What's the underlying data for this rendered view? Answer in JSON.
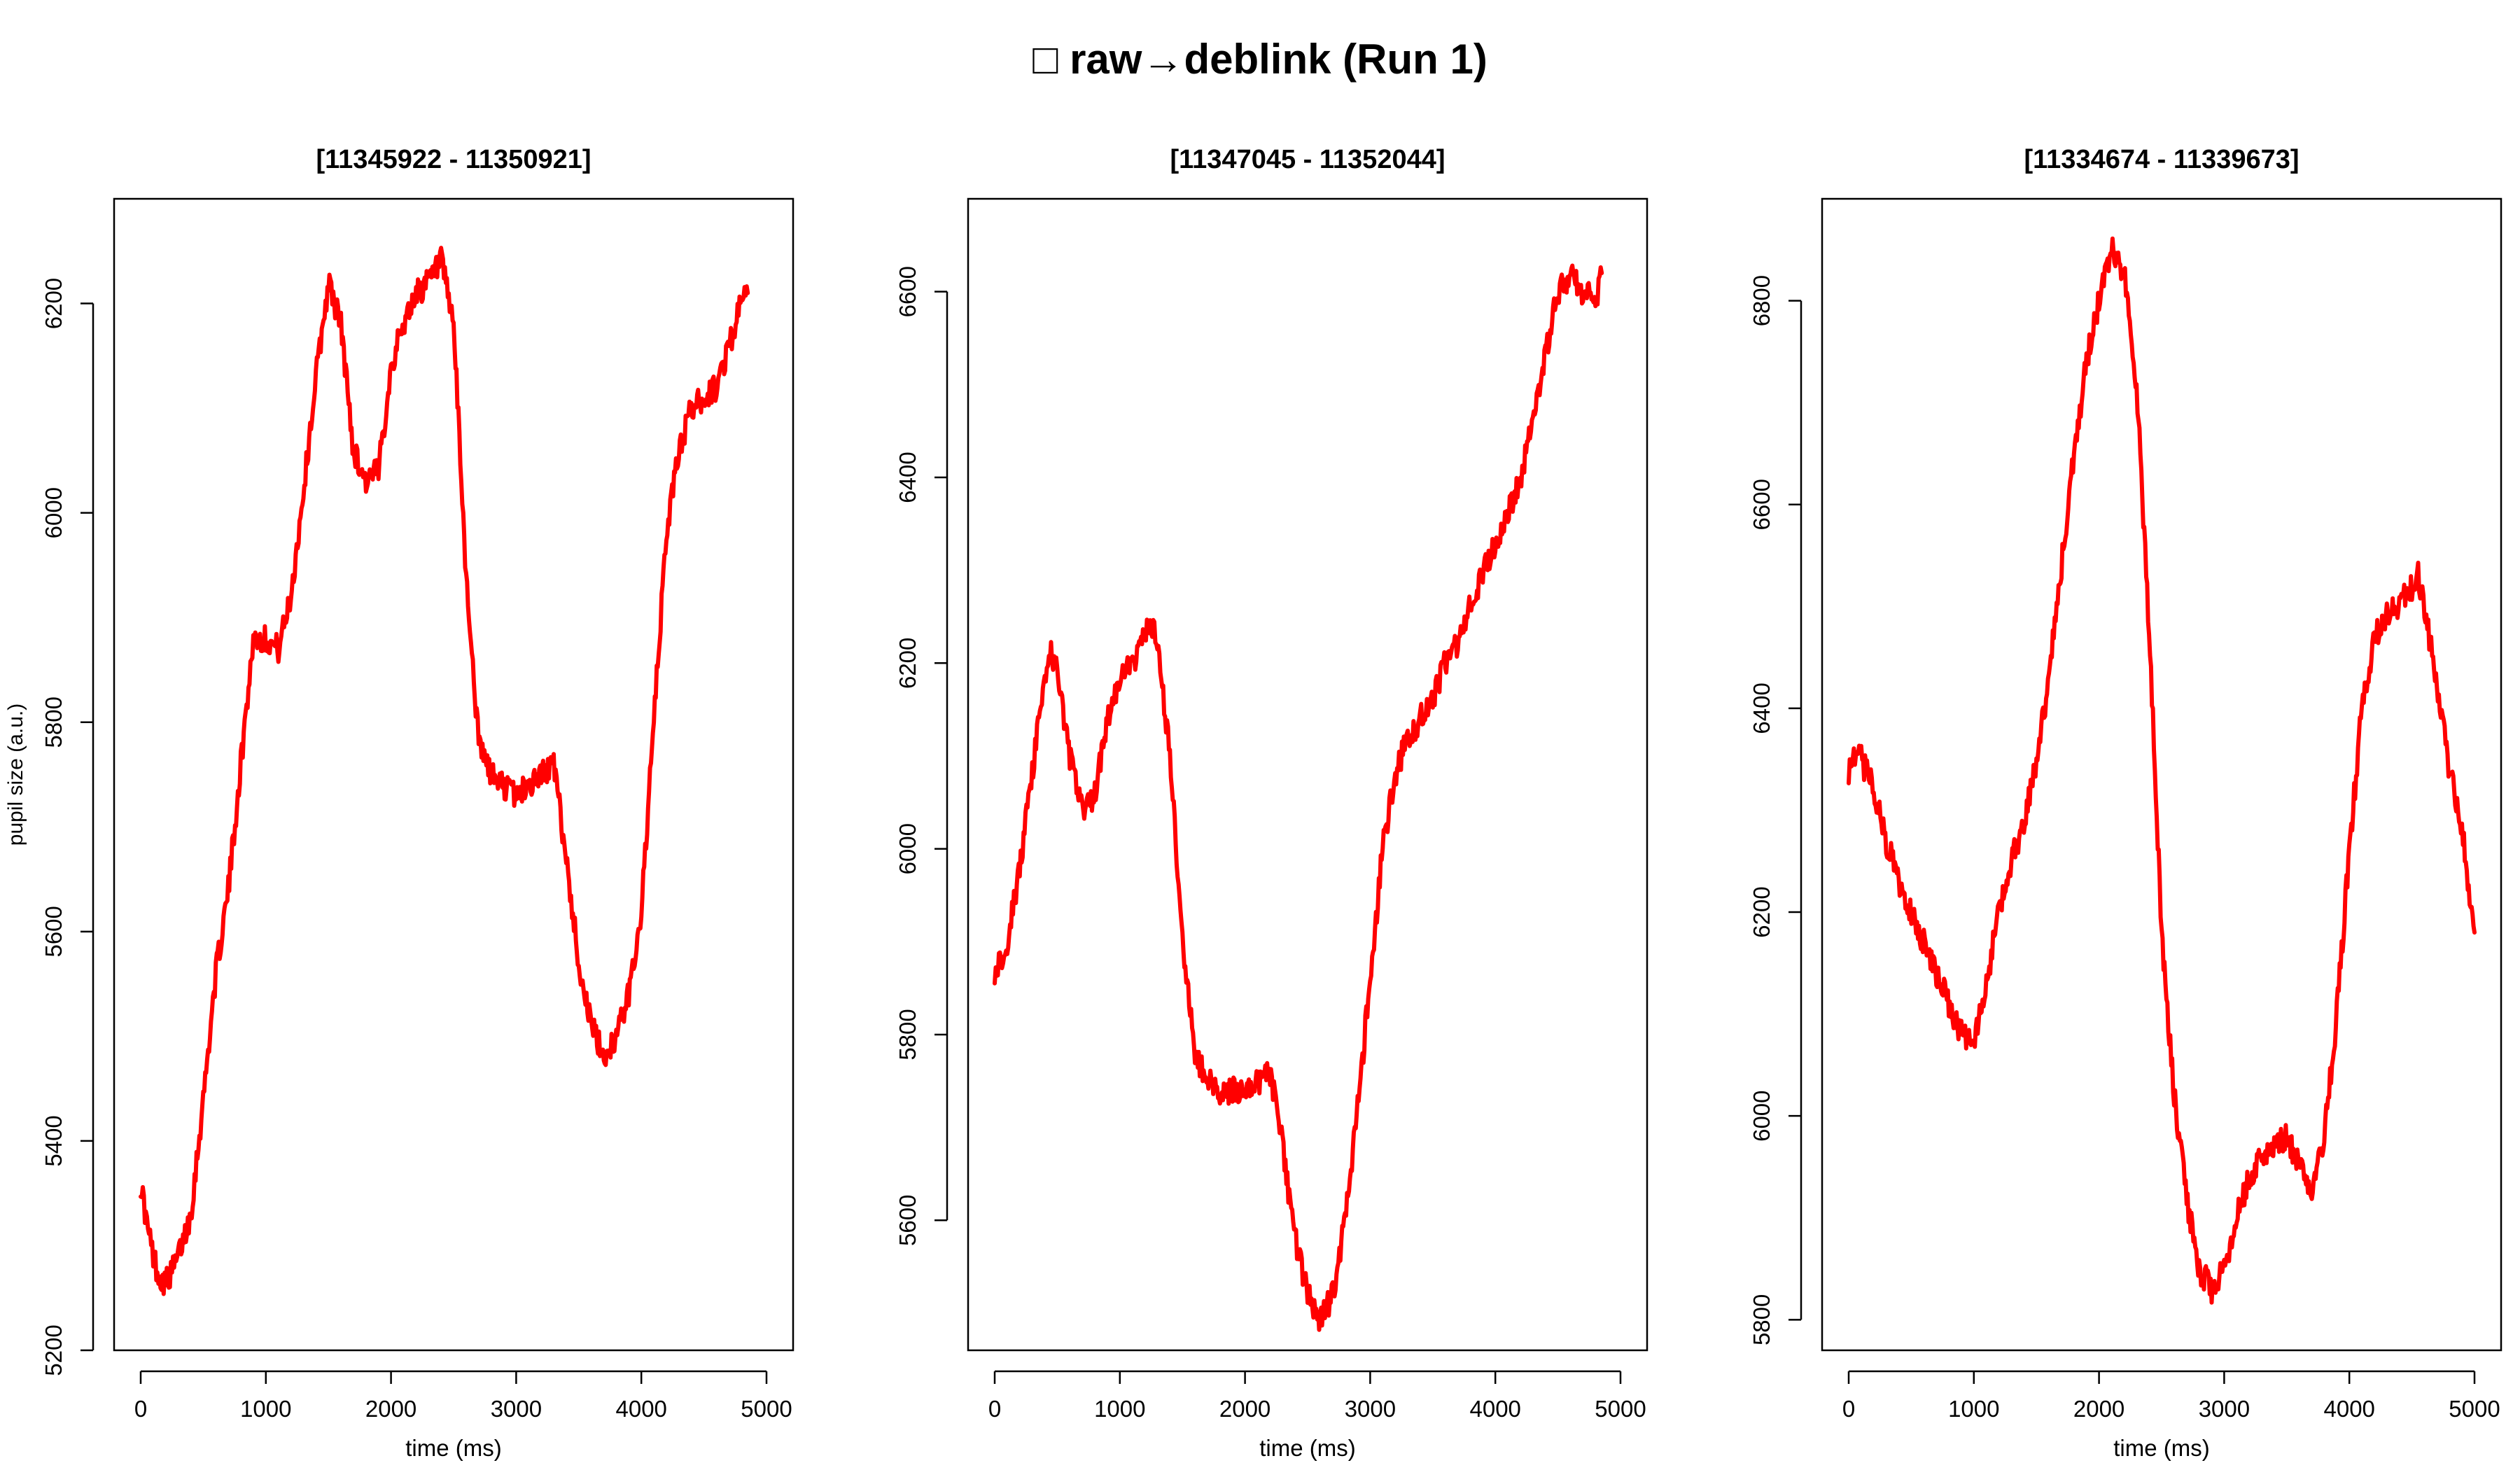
{
  "figure_title": "□ raw→deblink (Run 1)",
  "colors": {
    "line": "#ff0000",
    "axis": "#000000",
    "background": "#ffffff"
  },
  "chart_data": [
    {
      "type": "line",
      "title": "[11345922 - 11350921]",
      "xlabel": "time (ms)",
      "ylabel": "pupil size (a.u.)",
      "xlim": [
        0,
        5000
      ],
      "ylim": [
        5200,
        6300
      ],
      "xticks": [
        0,
        1000,
        2000,
        3000,
        4000,
        5000
      ],
      "yticks": [
        5200,
        5400,
        5600,
        5800,
        6000,
        6200
      ],
      "grid": false,
      "series": [
        {
          "color": "#ff0000",
          "x": [
            0,
            50,
            100,
            150,
            200,
            250,
            300,
            400,
            500,
            600,
            700,
            800,
            900,
            1000,
            1100,
            1200,
            1300,
            1400,
            1500,
            1600,
            1700,
            1800,
            1900,
            2000,
            2100,
            2200,
            2300,
            2400,
            2500,
            2600,
            2700,
            2800,
            2900,
            3000,
            3100,
            3200,
            3300,
            3400,
            3500,
            3600,
            3700,
            3800,
            3900,
            4000,
            4100,
            4200,
            4300,
            4400,
            4500,
            4600,
            4700,
            4800,
            4850
          ],
          "y": [
            5360,
            5320,
            5290,
            5270,
            5265,
            5275,
            5290,
            5330,
            5440,
            5560,
            5640,
            5760,
            5880,
            5880,
            5870,
            5920,
            6020,
            6130,
            6220,
            6180,
            6060,
            6030,
            6040,
            6140,
            6180,
            6210,
            6220,
            6240,
            6180,
            5940,
            5780,
            5750,
            5740,
            5730,
            5740,
            5750,
            5760,
            5670,
            5570,
            5510,
            5480,
            5500,
            5540,
            5620,
            5800,
            5980,
            6060,
            6100,
            6110,
            6120,
            6160,
            6200,
            6210
          ]
        }
      ]
    },
    {
      "type": "line",
      "title": "[11347045 - 11352044]",
      "xlabel": "time (ms)",
      "ylabel": "",
      "xlim": [
        0,
        5000
      ],
      "ylim": [
        5460,
        6700
      ],
      "xticks": [
        0,
        1000,
        2000,
        3000,
        4000,
        5000
      ],
      "yticks": [
        5600,
        5800,
        6000,
        6200,
        6400,
        6600
      ],
      "grid": false,
      "series": [
        {
          "color": "#ff0000",
          "x": [
            0,
            50,
            100,
            200,
            300,
            400,
            450,
            500,
            600,
            700,
            800,
            900,
            1000,
            1100,
            1200,
            1250,
            1300,
            1400,
            1500,
            1600,
            1700,
            1800,
            1900,
            2000,
            2100,
            2200,
            2300,
            2400,
            2500,
            2600,
            2700,
            2800,
            2900,
            3000,
            3100,
            3200,
            3300,
            3400,
            3500,
            3600,
            3700,
            3800,
            3900,
            4000,
            4100,
            4200,
            4300,
            4400,
            4500,
            4600,
            4700,
            4800,
            4850
          ],
          "y": [
            5870,
            5880,
            5900,
            5980,
            6080,
            6190,
            6210,
            6190,
            6100,
            6040,
            6060,
            6140,
            6180,
            6200,
            6230,
            6240,
            6220,
            6100,
            5900,
            5780,
            5750,
            5740,
            5740,
            5740,
            5750,
            5760,
            5680,
            5580,
            5520,
            5490,
            5520,
            5600,
            5720,
            5860,
            6000,
            6080,
            6120,
            6140,
            6160,
            6200,
            6220,
            6260,
            6300,
            6330,
            6360,
            6400,
            6460,
            6530,
            6600,
            6620,
            6600,
            6590,
            6620
          ]
        }
      ]
    },
    {
      "type": "line",
      "title": "[11334674 - 11339673]",
      "xlabel": "time (ms)",
      "ylabel": "",
      "xlim": [
        0,
        5000
      ],
      "ylim": [
        5770,
        6900
      ],
      "xticks": [
        0,
        1000,
        2000,
        3000,
        4000,
        5000
      ],
      "yticks": [
        5800,
        6000,
        6200,
        6400,
        6600,
        6800
      ],
      "grid": false,
      "series": [
        {
          "color": "#ff0000",
          "x": [
            0,
            50,
            100,
            200,
            300,
            400,
            500,
            600,
            700,
            800,
            900,
            1000,
            1100,
            1200,
            1300,
            1400,
            1500,
            1600,
            1700,
            1800,
            1900,
            2000,
            2100,
            2200,
            2300,
            2400,
            2500,
            2600,
            2700,
            2800,
            2900,
            3000,
            3100,
            3200,
            3300,
            3400,
            3500,
            3600,
            3700,
            3800,
            3900,
            4000,
            4100,
            4200,
            4300,
            4400,
            4500,
            4550,
            4600,
            4700,
            4800,
            4900,
            5000
          ],
          "y": [
            6340,
            6350,
            6350,
            6320,
            6270,
            6230,
            6200,
            6170,
            6140,
            6110,
            6080,
            6070,
            6130,
            6200,
            6250,
            6290,
            6350,
            6430,
            6540,
            6650,
            6740,
            6800,
            6850,
            6830,
            6720,
            6480,
            6180,
            6020,
            5920,
            5850,
            5830,
            5850,
            5900,
            5940,
            5960,
            5970,
            5980,
            5950,
            5930,
            5980,
            6100,
            6260,
            6400,
            6470,
            6490,
            6500,
            6520,
            6530,
            6500,
            6420,
            6340,
            6280,
            6180
          ]
        }
      ]
    }
  ]
}
